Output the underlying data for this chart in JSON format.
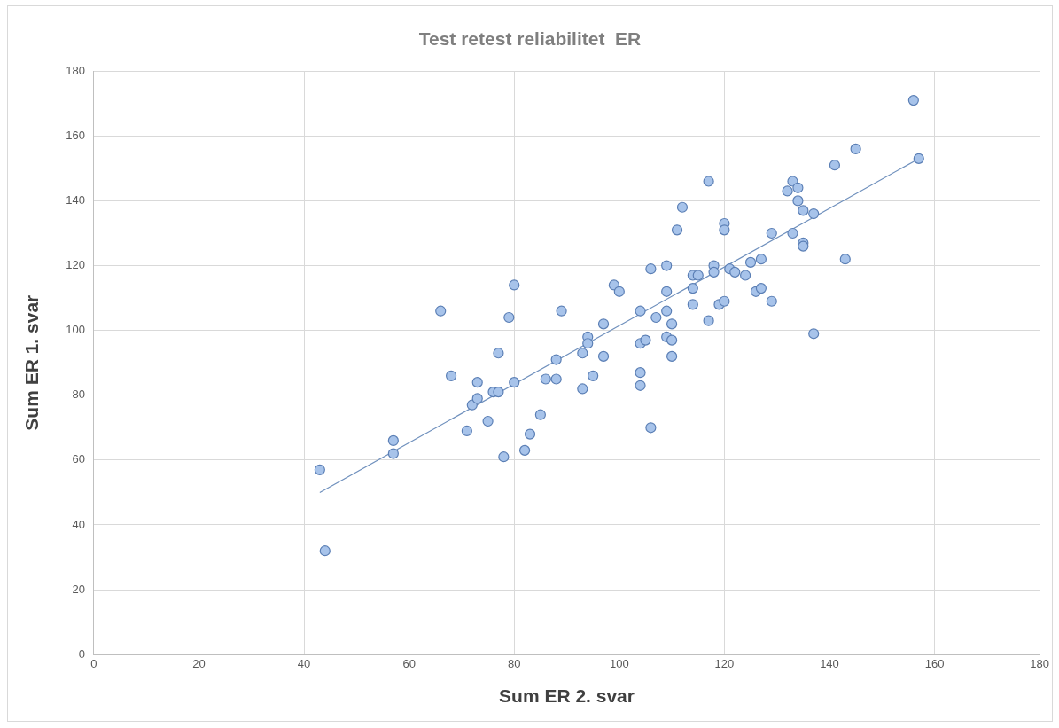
{
  "chart_data": {
    "type": "scatter",
    "title": "Test retest reliabilitet  ER",
    "xlabel": "Sum ER 2. svar",
    "ylabel": "Sum ER 1. svar",
    "xlim": [
      0,
      180
    ],
    "xticks": [
      0,
      20,
      40,
      60,
      80,
      100,
      120,
      140,
      160,
      180
    ],
    "ylim": [
      0,
      180
    ],
    "yticks": [
      0,
      20,
      40,
      60,
      80,
      100,
      120,
      140,
      160,
      180
    ],
    "grid": true,
    "legend": false,
    "marker": "circle",
    "series": [
      {
        "color": "#a7c3ea",
        "x": [
          43,
          44,
          57,
          57,
          66,
          68,
          71,
          72,
          73,
          73,
          75,
          76,
          77,
          77,
          78,
          79,
          80,
          80,
          82,
          83,
          85,
          86,
          88,
          88,
          89,
          93,
          93,
          94,
          94,
          95,
          97,
          97,
          99,
          100,
          104,
          104,
          104,
          104,
          105,
          106,
          106,
          107,
          109,
          109,
          109,
          109,
          110,
          110,
          110,
          111,
          112,
          114,
          114,
          114,
          115,
          117,
          117,
          118,
          118,
          119,
          120,
          120,
          120,
          121,
          122,
          124,
          125,
          126,
          127,
          127,
          129,
          129,
          132,
          133,
          133,
          134,
          134,
          135,
          135,
          135,
          137,
          137,
          141,
          143,
          145,
          156,
          157
        ],
        "values": [
          57,
          32,
          66,
          62,
          106,
          86,
          69,
          77,
          84,
          79,
          72,
          81,
          81,
          93,
          61,
          104,
          114,
          84,
          63,
          68,
          74,
          85,
          85,
          91,
          106,
          93,
          82,
          98,
          96,
          86,
          102,
          92,
          114,
          112,
          83,
          87,
          96,
          106,
          97,
          70,
          119,
          104,
          120,
          112,
          106,
          98,
          92,
          97,
          102,
          131,
          138,
          113,
          108,
          117,
          117,
          146,
          103,
          120,
          118,
          108,
          133,
          131,
          109,
          119,
          118,
          117,
          121,
          112,
          113,
          122,
          109,
          130,
          143,
          146,
          130,
          144,
          140,
          137,
          127,
          126,
          136,
          99,
          151,
          122,
          156,
          171,
          153
        ]
      },
      {
        "type": "line",
        "color": "#6f90bd",
        "marker": "none",
        "x": [
          43,
          157
        ],
        "values": [
          50,
          153
        ]
      }
    ]
  }
}
